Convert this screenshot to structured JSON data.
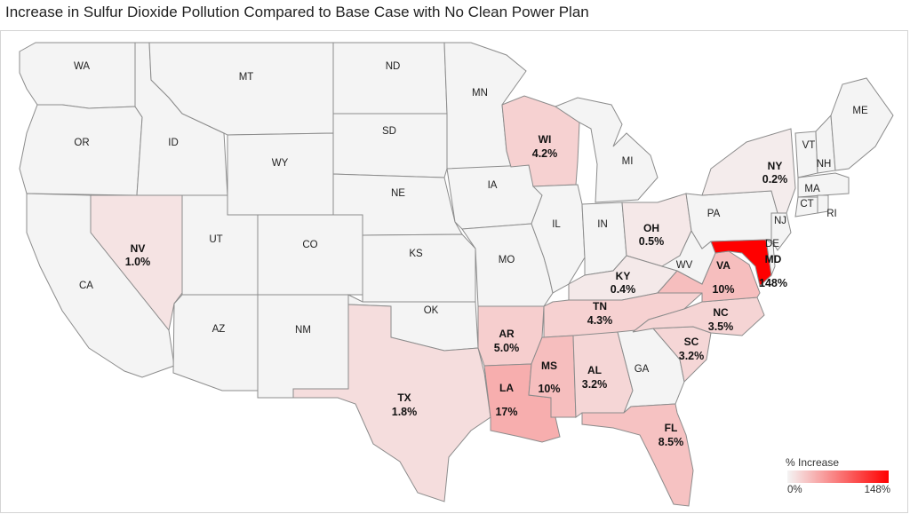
{
  "title": "Increase in Sulfur Dioxide Pollution Compared to Base Case with No Clean Power Plan",
  "legend": {
    "title": "% Increase",
    "min": "0%",
    "max": "148%",
    "min_color": "#f4f4f4",
    "max_color": "#ff0000"
  },
  "states": {
    "WA": {
      "abbr": "WA"
    },
    "OR": {
      "abbr": "OR"
    },
    "CA": {
      "abbr": "CA"
    },
    "NV": {
      "abbr": "NV",
      "value": "1.0%",
      "pct": 1.0
    },
    "ID": {
      "abbr": "ID"
    },
    "MT": {
      "abbr": "MT"
    },
    "WY": {
      "abbr": "WY"
    },
    "UT": {
      "abbr": "UT"
    },
    "AZ": {
      "abbr": "AZ"
    },
    "CO": {
      "abbr": "CO"
    },
    "NM": {
      "abbr": "NM"
    },
    "ND": {
      "abbr": "ND"
    },
    "SD": {
      "abbr": "SD"
    },
    "NE": {
      "abbr": "NE"
    },
    "KS": {
      "abbr": "KS"
    },
    "OK": {
      "abbr": "OK"
    },
    "TX": {
      "abbr": "TX",
      "value": "1.8%",
      "pct": 1.8
    },
    "MN": {
      "abbr": "MN"
    },
    "IA": {
      "abbr": "IA"
    },
    "MO": {
      "abbr": "MO"
    },
    "AR": {
      "abbr": "AR",
      "value": "5.0%",
      "pct": 5.0
    },
    "LA": {
      "abbr": "LA",
      "value": "17%",
      "pct": 17
    },
    "WI": {
      "abbr": "WI",
      "value": "4.2%",
      "pct": 4.2
    },
    "IL": {
      "abbr": "IL"
    },
    "MI": {
      "abbr": "MI"
    },
    "IN": {
      "abbr": "IN"
    },
    "OH": {
      "abbr": "OH",
      "value": "0.5%",
      "pct": 0.5
    },
    "KY": {
      "abbr": "KY",
      "value": "0.4%",
      "pct": 0.4
    },
    "TN": {
      "abbr": "TN",
      "value": "4.3%",
      "pct": 4.3
    },
    "MS": {
      "abbr": "MS",
      "value": "10%",
      "pct": 10
    },
    "AL": {
      "abbr": "AL",
      "value": "3.2%",
      "pct": 3.2
    },
    "GA": {
      "abbr": "GA"
    },
    "FL": {
      "abbr": "FL",
      "value": "8.5%",
      "pct": 8.5
    },
    "SC": {
      "abbr": "SC",
      "value": "3.2%",
      "pct": 3.2
    },
    "NC": {
      "abbr": "NC",
      "value": "3.5%",
      "pct": 3.5
    },
    "VA": {
      "abbr": "VA",
      "value": "10%",
      "pct": 10
    },
    "WV": {
      "abbr": "WV"
    },
    "PA": {
      "abbr": "PA"
    },
    "NY": {
      "abbr": "NY",
      "value": "0.2%",
      "pct": 0.2
    },
    "MD": {
      "abbr": "MD",
      "value": "148%",
      "pct": 148
    },
    "DE": {
      "abbr": "DE"
    },
    "NJ": {
      "abbr": "NJ"
    },
    "VT": {
      "abbr": "VT"
    },
    "NH": {
      "abbr": "NH"
    },
    "ME": {
      "abbr": "ME"
    },
    "MA": {
      "abbr": "MA"
    },
    "CT": {
      "abbr": "CT"
    },
    "RI": {
      "abbr": "RI"
    }
  }
}
